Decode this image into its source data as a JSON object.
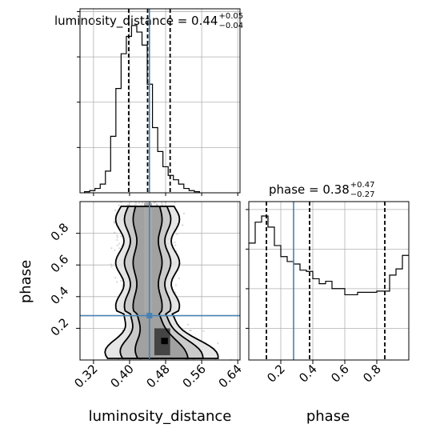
{
  "chart_data": {
    "type": "corner",
    "parameters": [
      "luminosity_distance",
      "phase"
    ],
    "x_axis_label": "luminosity_distance",
    "y_axis_label": "phase",
    "phase_axis_label": "phase",
    "titles": {
      "luminosity_distance": {
        "name": "luminosity_distance",
        "median": "0.44",
        "plus": "+0.05",
        "minus": "−0.04"
      },
      "phase": {
        "name": "phase",
        "median": "0.38",
        "plus": "+0.47",
        "minus": "−0.27"
      }
    },
    "luminosity_distance_axis": {
      "range": [
        0.29,
        0.645
      ],
      "ticks": [
        0.32,
        0.4,
        0.48,
        0.56,
        0.64
      ],
      "tick_labels": [
        "0.32",
        "0.40",
        "0.48",
        "0.56",
        "0.64"
      ]
    },
    "phase_axis": {
      "range": [
        0.0,
        1.0
      ],
      "ticks": [
        0.2,
        0.4,
        0.6,
        0.8
      ],
      "tick_labels": [
        "0.2",
        "0.4",
        "0.6",
        "0.8"
      ]
    },
    "truths": {
      "luminosity_distance": 0.444,
      "phase": 0.28
    },
    "quantiles": {
      "luminosity_distance": [
        0.398,
        0.44,
        0.49
      ],
      "phase": [
        0.11,
        0.38,
        0.85
      ]
    },
    "luminosity_distance_hist": {
      "bin_edges_start": 0.3,
      "bin_width": 0.0116,
      "counts": [
        0.5,
        1,
        2,
        4,
        10,
        26,
        48,
        64,
        72,
        77,
        74,
        68,
        50,
        30,
        19,
        12,
        8,
        6,
        4,
        2,
        1,
        0.5
      ]
    },
    "phase_hist": {
      "bin_edges_start": 0.0,
      "bin_width": 0.04,
      "counts": [
        95,
        112,
        117,
        108,
        93,
        84,
        80,
        78,
        73,
        72,
        66,
        62,
        64,
        58,
        58,
        53,
        53,
        55,
        55,
        55,
        56,
        56,
        69,
        74,
        85
      ]
    },
    "density_2d": {
      "x_center": 0.44,
      "x_width_lower": 0.022,
      "x_width_upper_top": 0.028,
      "x_width_upper_bottom": 0.055,
      "x_shift_bottom": 0.035,
      "contour_levels": [
        1.0,
        1.6,
        2.2
      ]
    },
    "grid": true
  }
}
